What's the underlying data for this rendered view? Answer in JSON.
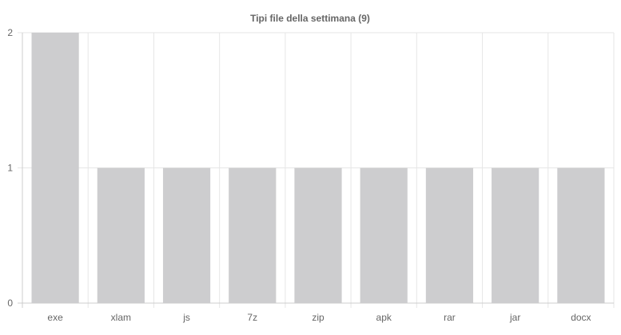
{
  "chart_data": {
    "type": "bar",
    "title": "Tipi file della settimana (9)",
    "categories": [
      "exe",
      "xlam",
      "js",
      "7z",
      "zip",
      "apk",
      "rar",
      "jar",
      "docx"
    ],
    "values": [
      2,
      1,
      1,
      1,
      1,
      1,
      1,
      1,
      1
    ],
    "ylim": [
      0,
      2
    ],
    "yticks": [
      "0",
      "1",
      "2"
    ],
    "xlabel": "",
    "ylabel": "",
    "grid": true,
    "legend": "none",
    "colors": {
      "bar": "#cdcdcf",
      "grid": "#e6e6e6",
      "axis": "#cccccc",
      "text": "#666666"
    }
  }
}
